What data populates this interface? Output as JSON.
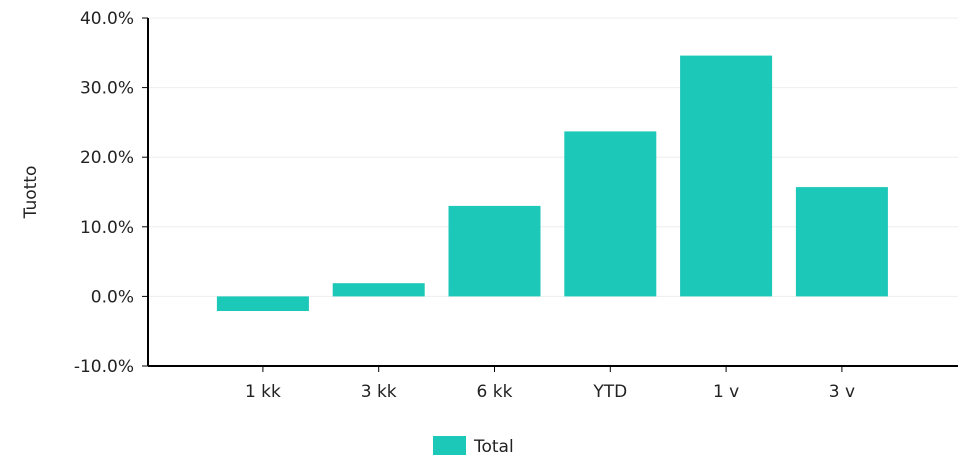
{
  "chart_data": {
    "type": "bar",
    "categories": [
      "1 kk",
      "3 kk",
      "6 kk",
      "YTD",
      "1 v",
      "3 v"
    ],
    "series": [
      {
        "name": "Total",
        "values": [
          -2.1,
          1.9,
          13.0,
          23.7,
          34.6,
          15.7
        ]
      }
    ],
    "ylabel": "Tuotto",
    "ylim": [
      -10,
      40
    ],
    "yticks": [
      -10,
      0,
      10,
      20,
      30,
      40
    ],
    "ytick_labels": [
      "-10.0%",
      "0.0%",
      "10.0%",
      "20.0%",
      "30.0%",
      "40.0%"
    ],
    "grid": true,
    "legend_position": "bottom-center",
    "colors": {
      "bar": "#1cc8b8",
      "axis": "#000000",
      "grid": "#eeeeee"
    }
  }
}
